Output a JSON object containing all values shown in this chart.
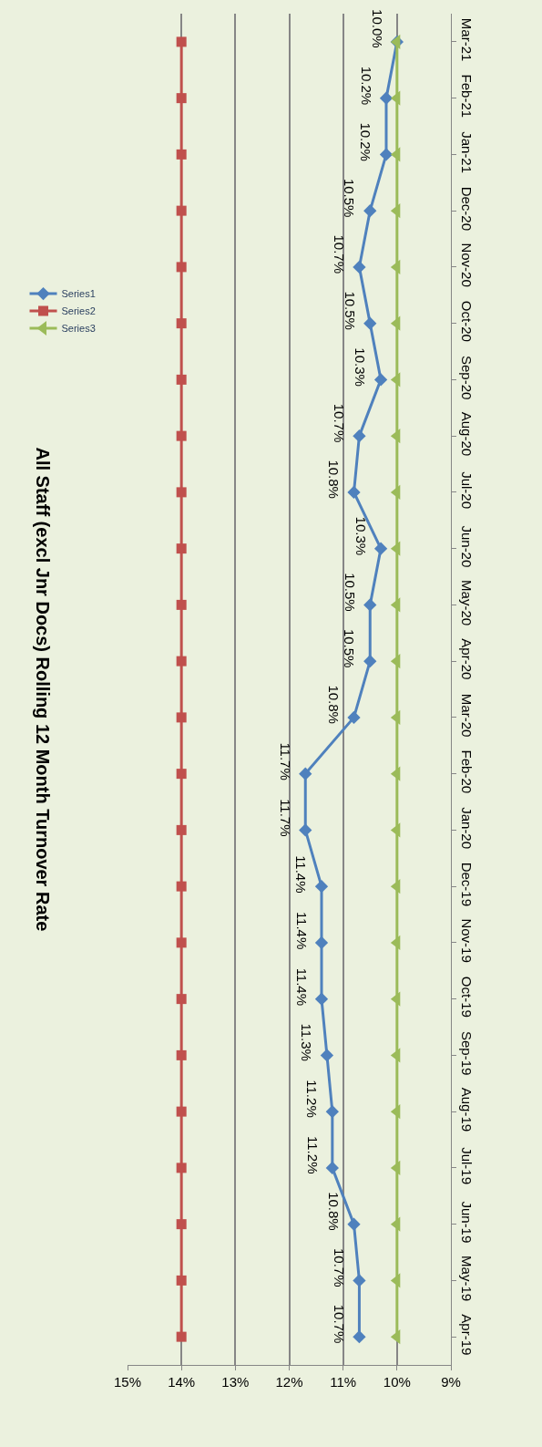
{
  "chart_data": {
    "type": "line",
    "orientation": "horizontal",
    "title": "All Staff (excl Jnr Docs) Rolling 12 Month Turnover Rate",
    "categories": [
      "Mar-21",
      "Feb-21",
      "Jan-21",
      "Dec-20",
      "Nov-20",
      "Oct-20",
      "Sep-20",
      "Aug-20",
      "Jul-20",
      "Jun-20",
      "May-20",
      "Apr-20",
      "Mar-20",
      "Feb-20",
      "Jan-20",
      "Dec-19",
      "Nov-19",
      "Oct-19",
      "Sep-19",
      "Aug-19",
      "Jul-19",
      "Jun-19",
      "May-19",
      "Apr-19"
    ],
    "series": [
      {
        "name": "Series1",
        "color": "#4f81bd",
        "marker": "diamond",
        "values": [
          10.0,
          10.2,
          10.2,
          10.5,
          10.7,
          10.5,
          10.3,
          10.7,
          10.8,
          10.3,
          10.5,
          10.5,
          10.8,
          11.7,
          11.7,
          11.4,
          11.4,
          11.4,
          11.3,
          11.2,
          11.2,
          10.8,
          10.7,
          10.7
        ],
        "value_labels": [
          "10.0%",
          "10.2%",
          "10.2%",
          "10.5%",
          "10.7%",
          "10.5%",
          "10.3%",
          "10.7%",
          "10.8%",
          "10.3%",
          "10.5%",
          "10.5%",
          "10.8%",
          "11.7%",
          "11.7%",
          "11.4%",
          "11.4%",
          "11.4%",
          "11.3%",
          "11.2%",
          "11.2%",
          "10.8%",
          "10.7%",
          "10.7%"
        ]
      },
      {
        "name": "Series2",
        "color": "#c0504d",
        "marker": "square",
        "values": [
          14,
          14,
          14,
          14,
          14,
          14,
          14,
          14,
          14,
          14,
          14,
          14,
          14,
          14,
          14,
          14,
          14,
          14,
          14,
          14,
          14,
          14,
          14,
          14
        ]
      },
      {
        "name": "Series3",
        "color": "#9bbb59",
        "marker": "triangle",
        "values": [
          10,
          10,
          10,
          10,
          10,
          10,
          10,
          10,
          10,
          10,
          10,
          10,
          10,
          10,
          10,
          10,
          10,
          10,
          10,
          10,
          10,
          10,
          10,
          10
        ]
      }
    ],
    "xlim": [
      15,
      9
    ],
    "xticks": [
      {
        "value": 15,
        "label": "15%"
      },
      {
        "value": 14,
        "label": "14%"
      },
      {
        "value": 13,
        "label": "13%"
      },
      {
        "value": 12,
        "label": "12%"
      },
      {
        "value": 11,
        "label": "11%"
      },
      {
        "value": 10,
        "label": "10%"
      },
      {
        "value": 9,
        "label": "9%"
      }
    ],
    "grid": "x",
    "legend": "top",
    "line_style": "solid"
  }
}
